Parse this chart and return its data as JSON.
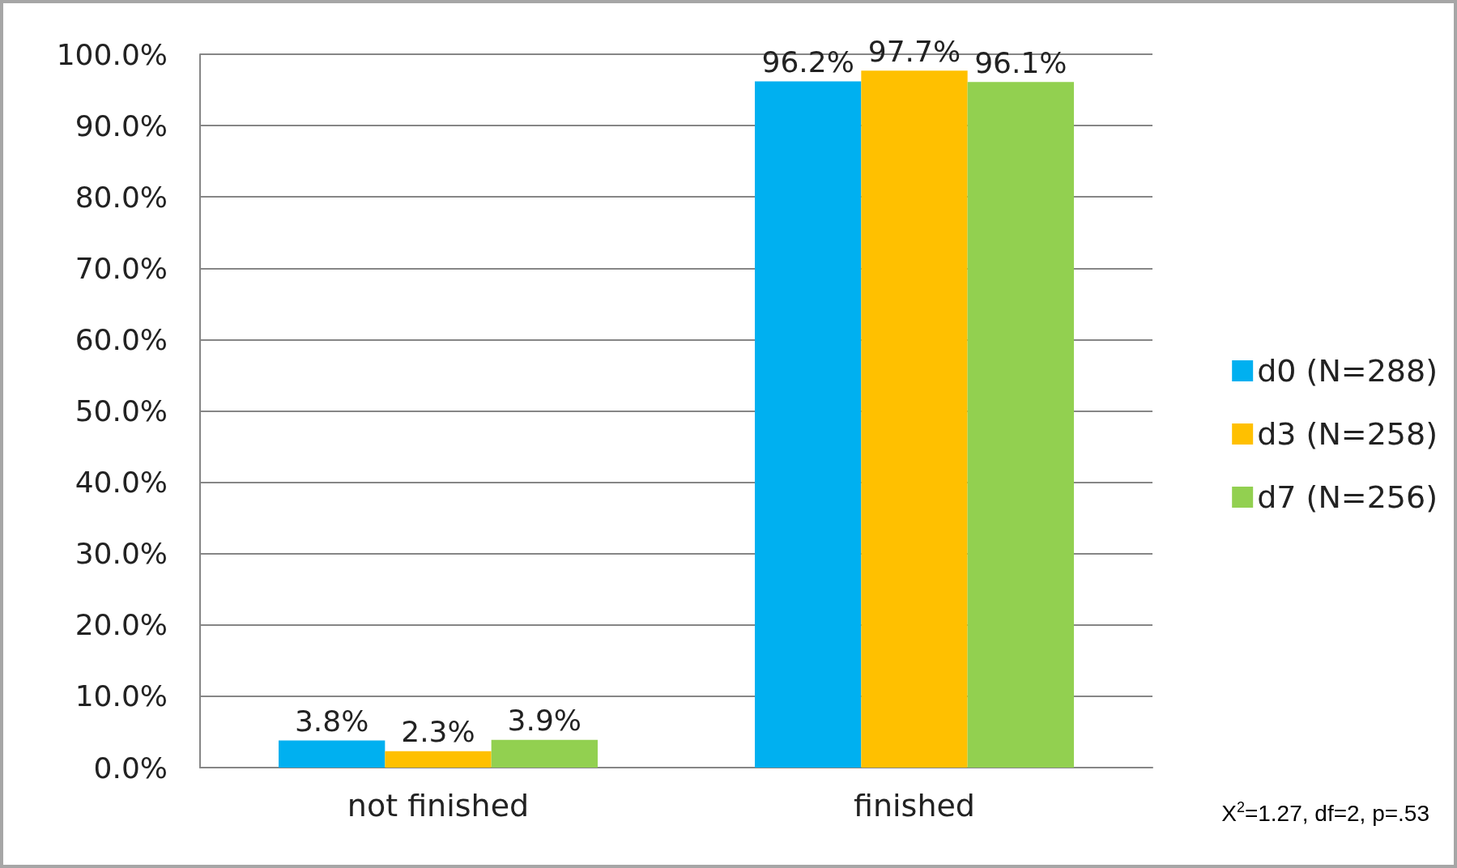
{
  "chart_data": {
    "type": "bar",
    "categories": [
      "not finished",
      "finished"
    ],
    "series": [
      {
        "name": "d0 (N=288)",
        "color": "#00b0f0",
        "values": [
          3.8,
          96.2
        ],
        "value_labels": [
          "3.8%",
          "96.2%"
        ]
      },
      {
        "name": "d3 (N=258)",
        "color": "#ffc000",
        "values": [
          2.3,
          97.7
        ],
        "value_labels": [
          "2.3%",
          "97.7%"
        ]
      },
      {
        "name": "d7 (N=256)",
        "color": "#92d050",
        "values": [
          3.9,
          96.1
        ],
        "value_labels": [
          "3.9%",
          "96.1%"
        ]
      }
    ],
    "ylim": [
      0,
      100
    ],
    "yticks": [
      {
        "value": 0,
        "label": "0.0%"
      },
      {
        "value": 10,
        "label": "10.0%"
      },
      {
        "value": 20,
        "label": "20.0%"
      },
      {
        "value": 30,
        "label": "30.0%"
      },
      {
        "value": 40,
        "label": "40.0%"
      },
      {
        "value": 50,
        "label": "50.0%"
      },
      {
        "value": 60,
        "label": "60.0%"
      },
      {
        "value": 70,
        "label": "70.0%"
      },
      {
        "value": 80,
        "label": "80.0%"
      },
      {
        "value": 90,
        "label": "90.0%"
      },
      {
        "value": 100,
        "label": "100.0%"
      }
    ],
    "grid": "y",
    "legend": "right",
    "annotations": [
      "X$^{2}$=1.27, df=2, p=.53"
    ]
  }
}
